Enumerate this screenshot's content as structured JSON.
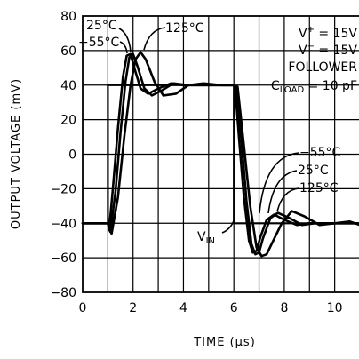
{
  "chart_data": {
    "type": "line",
    "title": "",
    "xlabel": "TIME (μs)",
    "ylabel": "OUTPUT VOLTAGE (mV)",
    "xlim": [
      0,
      11
    ],
    "ylim": [
      -80,
      80
    ],
    "x_ticks": [
      0,
      2,
      4,
      6,
      8,
      10
    ],
    "y_ticks": [
      80,
      60,
      40,
      20,
      0,
      -20,
      -40,
      -60,
      -80
    ],
    "grid": true,
    "conditions": [
      "V⁺ = 15V",
      "V⁻ = 15V",
      "FOLLOWER",
      "CLOAD = 10 pF"
    ],
    "series": [
      {
        "name": "VIN",
        "x": [
          1.0,
          1.0,
          6.0,
          6.0,
          11.0
        ],
        "values": [
          -40,
          40,
          40,
          -40,
          -40
        ]
      },
      {
        "name": "-55°C",
        "x": [
          0,
          1.0,
          1.05,
          1.2,
          1.4,
          1.6,
          1.75,
          1.9,
          2.05,
          2.3,
          2.6,
          3.0,
          3.5,
          4.0,
          5.0,
          6.0,
          6.05,
          6.2,
          6.4,
          6.6,
          6.75,
          6.9,
          7.05,
          7.3,
          7.6,
          8.0,
          8.5,
          9.0,
          10.0,
          11.0
        ],
        "values": [
          -40,
          -40,
          -44,
          -20,
          15,
          45,
          57,
          58,
          50,
          38,
          35,
          38,
          41,
          40,
          40,
          40,
          39,
          10,
          -25,
          -50,
          -57,
          -56,
          -48,
          -38,
          -35,
          -38,
          -41,
          -40,
          -40,
          -40
        ]
      },
      {
        "name": "25°C",
        "x": [
          0,
          1.0,
          1.1,
          1.3,
          1.5,
          1.7,
          1.85,
          2.0,
          2.15,
          2.45,
          2.75,
          3.15,
          3.6,
          4.2,
          5.0,
          6.0,
          6.1,
          6.3,
          6.5,
          6.7,
          6.85,
          7.0,
          7.15,
          7.45,
          7.75,
          8.2,
          8.7,
          9.2,
          10.0,
          11.0
        ],
        "values": [
          -40,
          -40,
          -45,
          -22,
          12,
          42,
          56,
          58,
          52,
          38,
          34,
          37,
          41,
          40,
          40,
          40,
          39,
          8,
          -27,
          -52,
          -58,
          -57,
          -49,
          -37,
          -34,
          -37,
          -41,
          -40,
          -40,
          -40
        ]
      },
      {
        "name": "125°C",
        "x": [
          0,
          1.0,
          1.15,
          1.4,
          1.65,
          1.9,
          2.1,
          2.3,
          2.5,
          2.85,
          3.2,
          3.7,
          4.2,
          4.8,
          5.5,
          6.0,
          6.15,
          6.4,
          6.65,
          6.9,
          7.1,
          7.3,
          7.5,
          7.9,
          8.3,
          8.8,
          9.4,
          10.0,
          10.6,
          11.0
        ],
        "values": [
          -40,
          -40,
          -46,
          -25,
          10,
          40,
          55,
          59,
          55,
          42,
          34,
          35,
          40,
          41,
          40,
          40,
          39,
          5,
          -30,
          -54,
          -59,
          -58,
          -52,
          -40,
          -33,
          -36,
          -41,
          -40,
          -39,
          -41
        ]
      }
    ]
  },
  "annotations": {
    "t25": "25°C",
    "t55": "−55°C",
    "t125": "125°C",
    "b55": "−55°C",
    "b25": "25°C",
    "b125": "125°C",
    "vin_main": "V",
    "vin_sub": "IN",
    "vplus_v": "V",
    "vplus_sup": "+",
    "vplus_rest": " = 15V",
    "vminus_v": "V",
    "vminus_sup": "−",
    "vminus_rest": " = 15V",
    "follower": "FOLLOWER",
    "cload_c": "C",
    "cload_sub": "LOAD",
    "cload_rest": " = 10 pF"
  }
}
